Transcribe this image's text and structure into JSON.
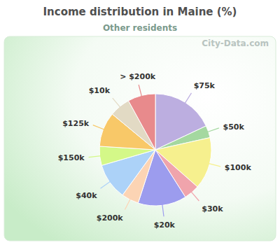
{
  "chart_data": {
    "type": "pie",
    "title": "Income distribution in Maine (%)",
    "subtitle": "Other residents",
    "annotations": [
      "City-Data.com"
    ],
    "categories": [
      "$75k",
      "$50k",
      "$100k",
      "$30k",
      "$20k",
      "$200k",
      "$40k",
      "$150k",
      "$125k",
      "$10k",
      "> $200k"
    ],
    "values": [
      18,
      3.5,
      15,
      4.5,
      14,
      5,
      10.5,
      5.5,
      10,
      6,
      8
    ],
    "colors": [
      "#bcaee0",
      "#a4d8a0",
      "#f6f08e",
      "#f0a4ac",
      "#9c9cee",
      "#fcd4b4",
      "#acd2f8",
      "#d4f888",
      "#f8c868",
      "#e2dac4",
      "#e88a8c"
    ],
    "data_labels": false
  }
}
